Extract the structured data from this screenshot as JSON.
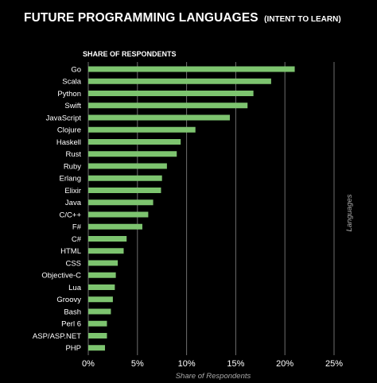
{
  "header": {
    "title": "FUTURE PROGRAMMING LANGUAGES",
    "title_suffix": "(INTENT TO LEARN)"
  },
  "chart_data": {
    "type": "bar",
    "orientation": "horizontal",
    "subtitle": "SHARE OF RESPONDENTS",
    "xlabel": "Share of Respondents",
    "ylabel": "Languages",
    "xlim": [
      0,
      25
    ],
    "xticks": [
      0,
      5,
      10,
      15,
      20,
      25
    ],
    "xtick_labels": [
      "0%",
      "5%",
      "10%",
      "15%",
      "20%",
      "25%"
    ],
    "grid": "vertical",
    "categories": [
      "Go",
      "Scala",
      "Python",
      "Swift",
      "JavaScript",
      "Clojure",
      "Haskell",
      "Rust",
      "Ruby",
      "Erlang",
      "Elixir",
      "Java",
      "C/C++",
      "F#",
      "C#",
      "HTML",
      "CSS",
      "Objective-C",
      "Lua",
      "Groovy",
      "Bash",
      "Perl 6",
      "ASP/ASP.NET",
      "PHP"
    ],
    "values": [
      21.0,
      18.6,
      16.8,
      16.2,
      14.4,
      10.9,
      9.4,
      9.0,
      8.0,
      7.5,
      7.4,
      6.6,
      6.1,
      5.5,
      3.9,
      3.6,
      3.0,
      2.8,
      2.7,
      2.5,
      2.3,
      1.9,
      1.9,
      1.7
    ],
    "bar_color": "#7dc46f",
    "grid_color": "#6e6e6e"
  }
}
